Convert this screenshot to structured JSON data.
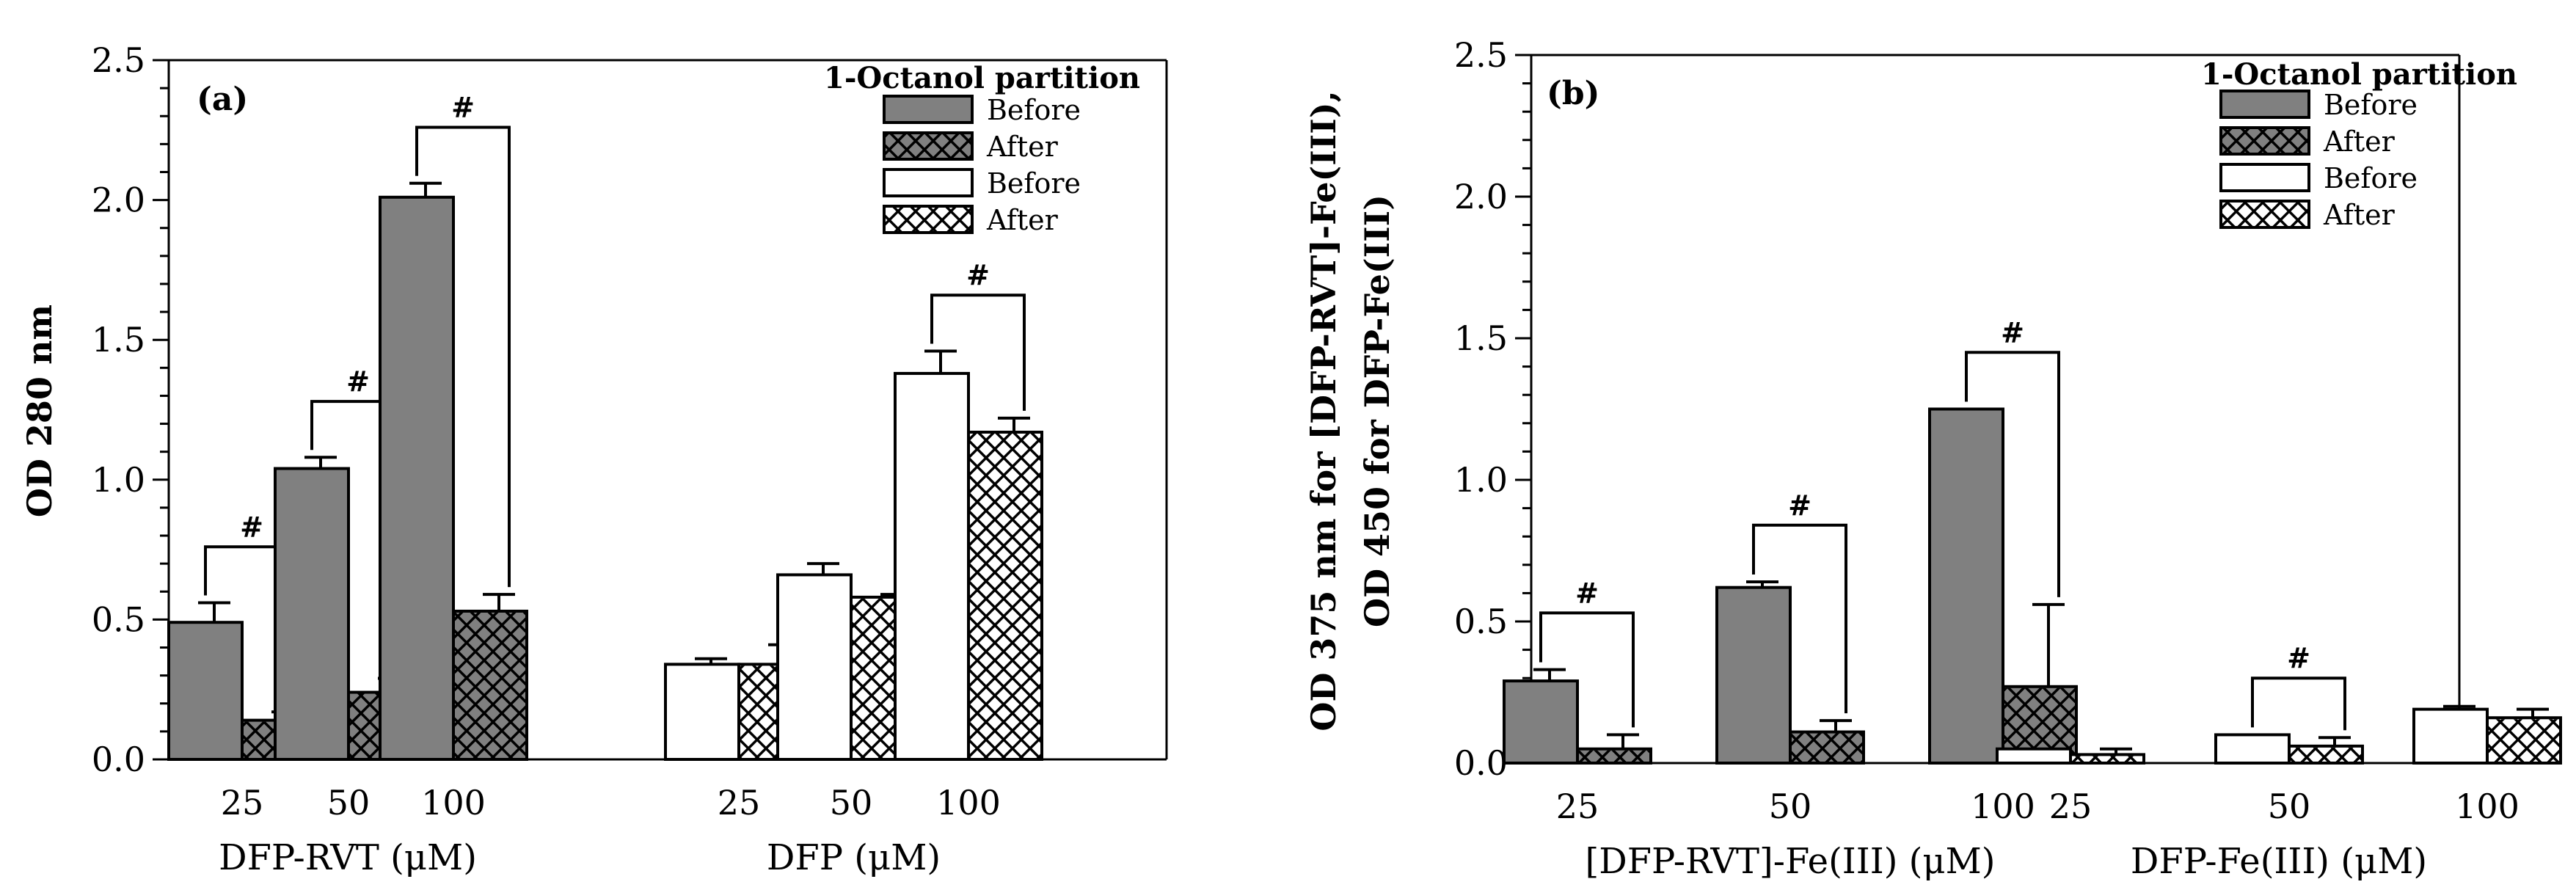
{
  "colors": {
    "dark_bar": "#808080",
    "light_bar": "#ffffff",
    "ink": "#000000"
  },
  "chart_data": [
    {
      "type": "bar",
      "panel_label": "(a)",
      "ylabel": "OD 280 nm",
      "ylim": [
        0,
        2.5
      ],
      "yticks": [
        "0.0",
        "0.5",
        "1.0",
        "1.5",
        "2.0",
        "2.5"
      ],
      "legend_title": "1-Octanol partition",
      "legend": [
        {
          "label": "Before",
          "style": "gray-solid"
        },
        {
          "label": "After",
          "style": "gray-hatched"
        },
        {
          "label": "Before",
          "style": "white-solid"
        },
        {
          "label": "After",
          "style": "white-hatched"
        }
      ],
      "groups": [
        {
          "name": "DFP-RVT (μM)",
          "categories": [
            "25",
            "50",
            "100"
          ],
          "series": [
            {
              "name": "Before",
              "style": "gray-solid",
              "values": [
                0.49,
                1.04,
                2.01
              ],
              "errors": [
                0.07,
                0.04,
                0.05
              ]
            },
            {
              "name": "After",
              "style": "gray-hatched",
              "values": [
                0.14,
                0.24,
                0.53
              ],
              "errors": [
                0.03,
                0.05,
                0.06
              ]
            }
          ],
          "significance": [
            {
              "category": 0,
              "label": "#"
            },
            {
              "category": 1,
              "label": "#"
            },
            {
              "category": 2,
              "label": "#"
            }
          ]
        },
        {
          "name": "DFP (μM)",
          "categories": [
            "25",
            "50",
            "100"
          ],
          "series": [
            {
              "name": "Before",
              "style": "white-solid",
              "values": [
                0.34,
                0.66,
                1.38
              ],
              "errors": [
                0.02,
                0.04,
                0.08
              ]
            },
            {
              "name": "After",
              "style": "white-hatched",
              "values": [
                0.34,
                0.58,
                1.17
              ],
              "errors": [
                0.07,
                0.01,
                0.05
              ]
            }
          ],
          "significance": [
            {
              "category": 2,
              "label": "#"
            }
          ]
        }
      ]
    },
    {
      "type": "bar",
      "panel_label": "(b)",
      "ylabel": "OD 375 nm for [DFP-RVT]-Fe(III),",
      "ylabel2": "OD 450 for DFP-Fe(III)",
      "ylim": [
        0,
        2.5
      ],
      "yticks": [
        "0.0",
        "0.5",
        "1.0",
        "1.5",
        "2.0",
        "2.5"
      ],
      "legend_title": "1-Octanol partition",
      "legend": [
        {
          "label": "Before",
          "style": "gray-solid"
        },
        {
          "label": "After",
          "style": "gray-hatched"
        },
        {
          "label": "Before",
          "style": "white-solid"
        },
        {
          "label": "After",
          "style": "white-hatched"
        }
      ],
      "groups": [
        {
          "name": "[DFP-RVT]-Fe(III) (μM)",
          "categories": [
            "25",
            "50",
            "100"
          ],
          "series": [
            {
              "name": "Before",
              "style": "gray-solid",
              "values": [
                0.29,
                0.62,
                1.25
              ],
              "errors": [
                0.04,
                0.02,
                0.0
              ]
            },
            {
              "name": "After",
              "style": "gray-hatched",
              "values": [
                0.05,
                0.11,
                0.27
              ],
              "errors": [
                0.05,
                0.04,
                0.29
              ]
            }
          ],
          "significance": [
            {
              "category": 0,
              "label": "#"
            },
            {
              "category": 1,
              "label": "#"
            },
            {
              "category": 2,
              "label": "#"
            }
          ]
        },
        {
          "name": "DFP-Fe(III) (μM)",
          "categories": [
            "25",
            "50",
            "100"
          ],
          "series": [
            {
              "name": "Before",
              "style": "white-solid",
              "values": [
                0.05,
                0.1,
                0.19
              ],
              "errors": [
                0.0,
                0.0,
                0.01
              ]
            },
            {
              "name": "After",
              "style": "white-hatched",
              "values": [
                0.03,
                0.06,
                0.16
              ],
              "errors": [
                0.02,
                0.03,
                0.03
              ]
            }
          ],
          "significance": [
            {
              "category": 1,
              "label": "#"
            }
          ]
        }
      ]
    }
  ]
}
